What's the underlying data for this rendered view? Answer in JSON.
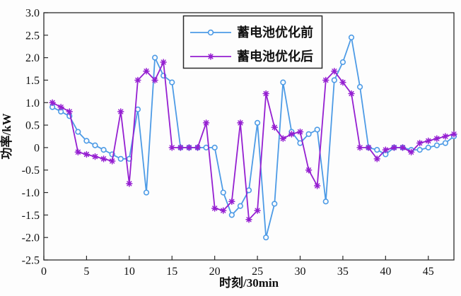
{
  "chart_data": {
    "type": "line",
    "title": "",
    "xlabel": "时刻/30min",
    "ylabel": "功率/kW",
    "xlim": [
      0,
      48
    ],
    "ylim": [
      -2.5,
      3.0
    ],
    "x_ticks": [
      0,
      5,
      10,
      15,
      20,
      25,
      30,
      35,
      40,
      45
    ],
    "y_ticks": [
      3.0,
      2.5,
      2.0,
      1.5,
      1.0,
      0.5,
      0,
      -0.5,
      -1.0,
      -1.5,
      -2.0,
      -2.5
    ],
    "grid": false,
    "legend_position": "top-center-inside",
    "frame_color": "#2b2b2b",
    "x": [
      1,
      2,
      3,
      4,
      5,
      6,
      7,
      8,
      9,
      10,
      11,
      12,
      13,
      14,
      15,
      16,
      17,
      18,
      19,
      20,
      21,
      22,
      23,
      24,
      25,
      26,
      27,
      28,
      29,
      30,
      31,
      32,
      33,
      34,
      35,
      36,
      37,
      38,
      39,
      40,
      41,
      42,
      43,
      44,
      45,
      46,
      47,
      48
    ],
    "series": [
      {
        "name": "蓄电池优化前",
        "color": "#4d9be6",
        "marker": "circle",
        "values": [
          0.9,
          0.8,
          0.7,
          0.35,
          0.15,
          0.05,
          -0.05,
          -0.15,
          -0.25,
          -0.25,
          0.85,
          -1.0,
          2.0,
          1.6,
          1.45,
          0,
          0,
          0,
          0,
          0,
          -1.0,
          -1.5,
          -1.3,
          -0.95,
          0.55,
          -2.0,
          -1.25,
          1.45,
          0.35,
          0.1,
          0.3,
          0.4,
          -1.2,
          1.5,
          1.9,
          2.45,
          1.35,
          0,
          -0.05,
          -0.15,
          0,
          0,
          -0.05,
          -0.05,
          0,
          0.05,
          0.1,
          0.25
        ]
      },
      {
        "name": "蓄电池优化后",
        "color": "#951fd1",
        "marker": "asterisk",
        "values": [
          1.0,
          0.9,
          0.8,
          -0.1,
          -0.15,
          -0.2,
          -0.25,
          -0.3,
          0.8,
          -0.8,
          1.5,
          1.7,
          1.5,
          1.9,
          0,
          0,
          0,
          0,
          0.55,
          -1.35,
          -1.4,
          -1.2,
          0.55,
          -1.6,
          -1.4,
          1.2,
          0.45,
          0.2,
          0.3,
          0.35,
          -0.5,
          -0.85,
          1.5,
          1.7,
          1.45,
          1.2,
          0,
          0,
          -0.25,
          -0.05,
          0,
          0,
          -0.1,
          0.1,
          0.15,
          0.2,
          0.25,
          0.3
        ]
      }
    ]
  }
}
